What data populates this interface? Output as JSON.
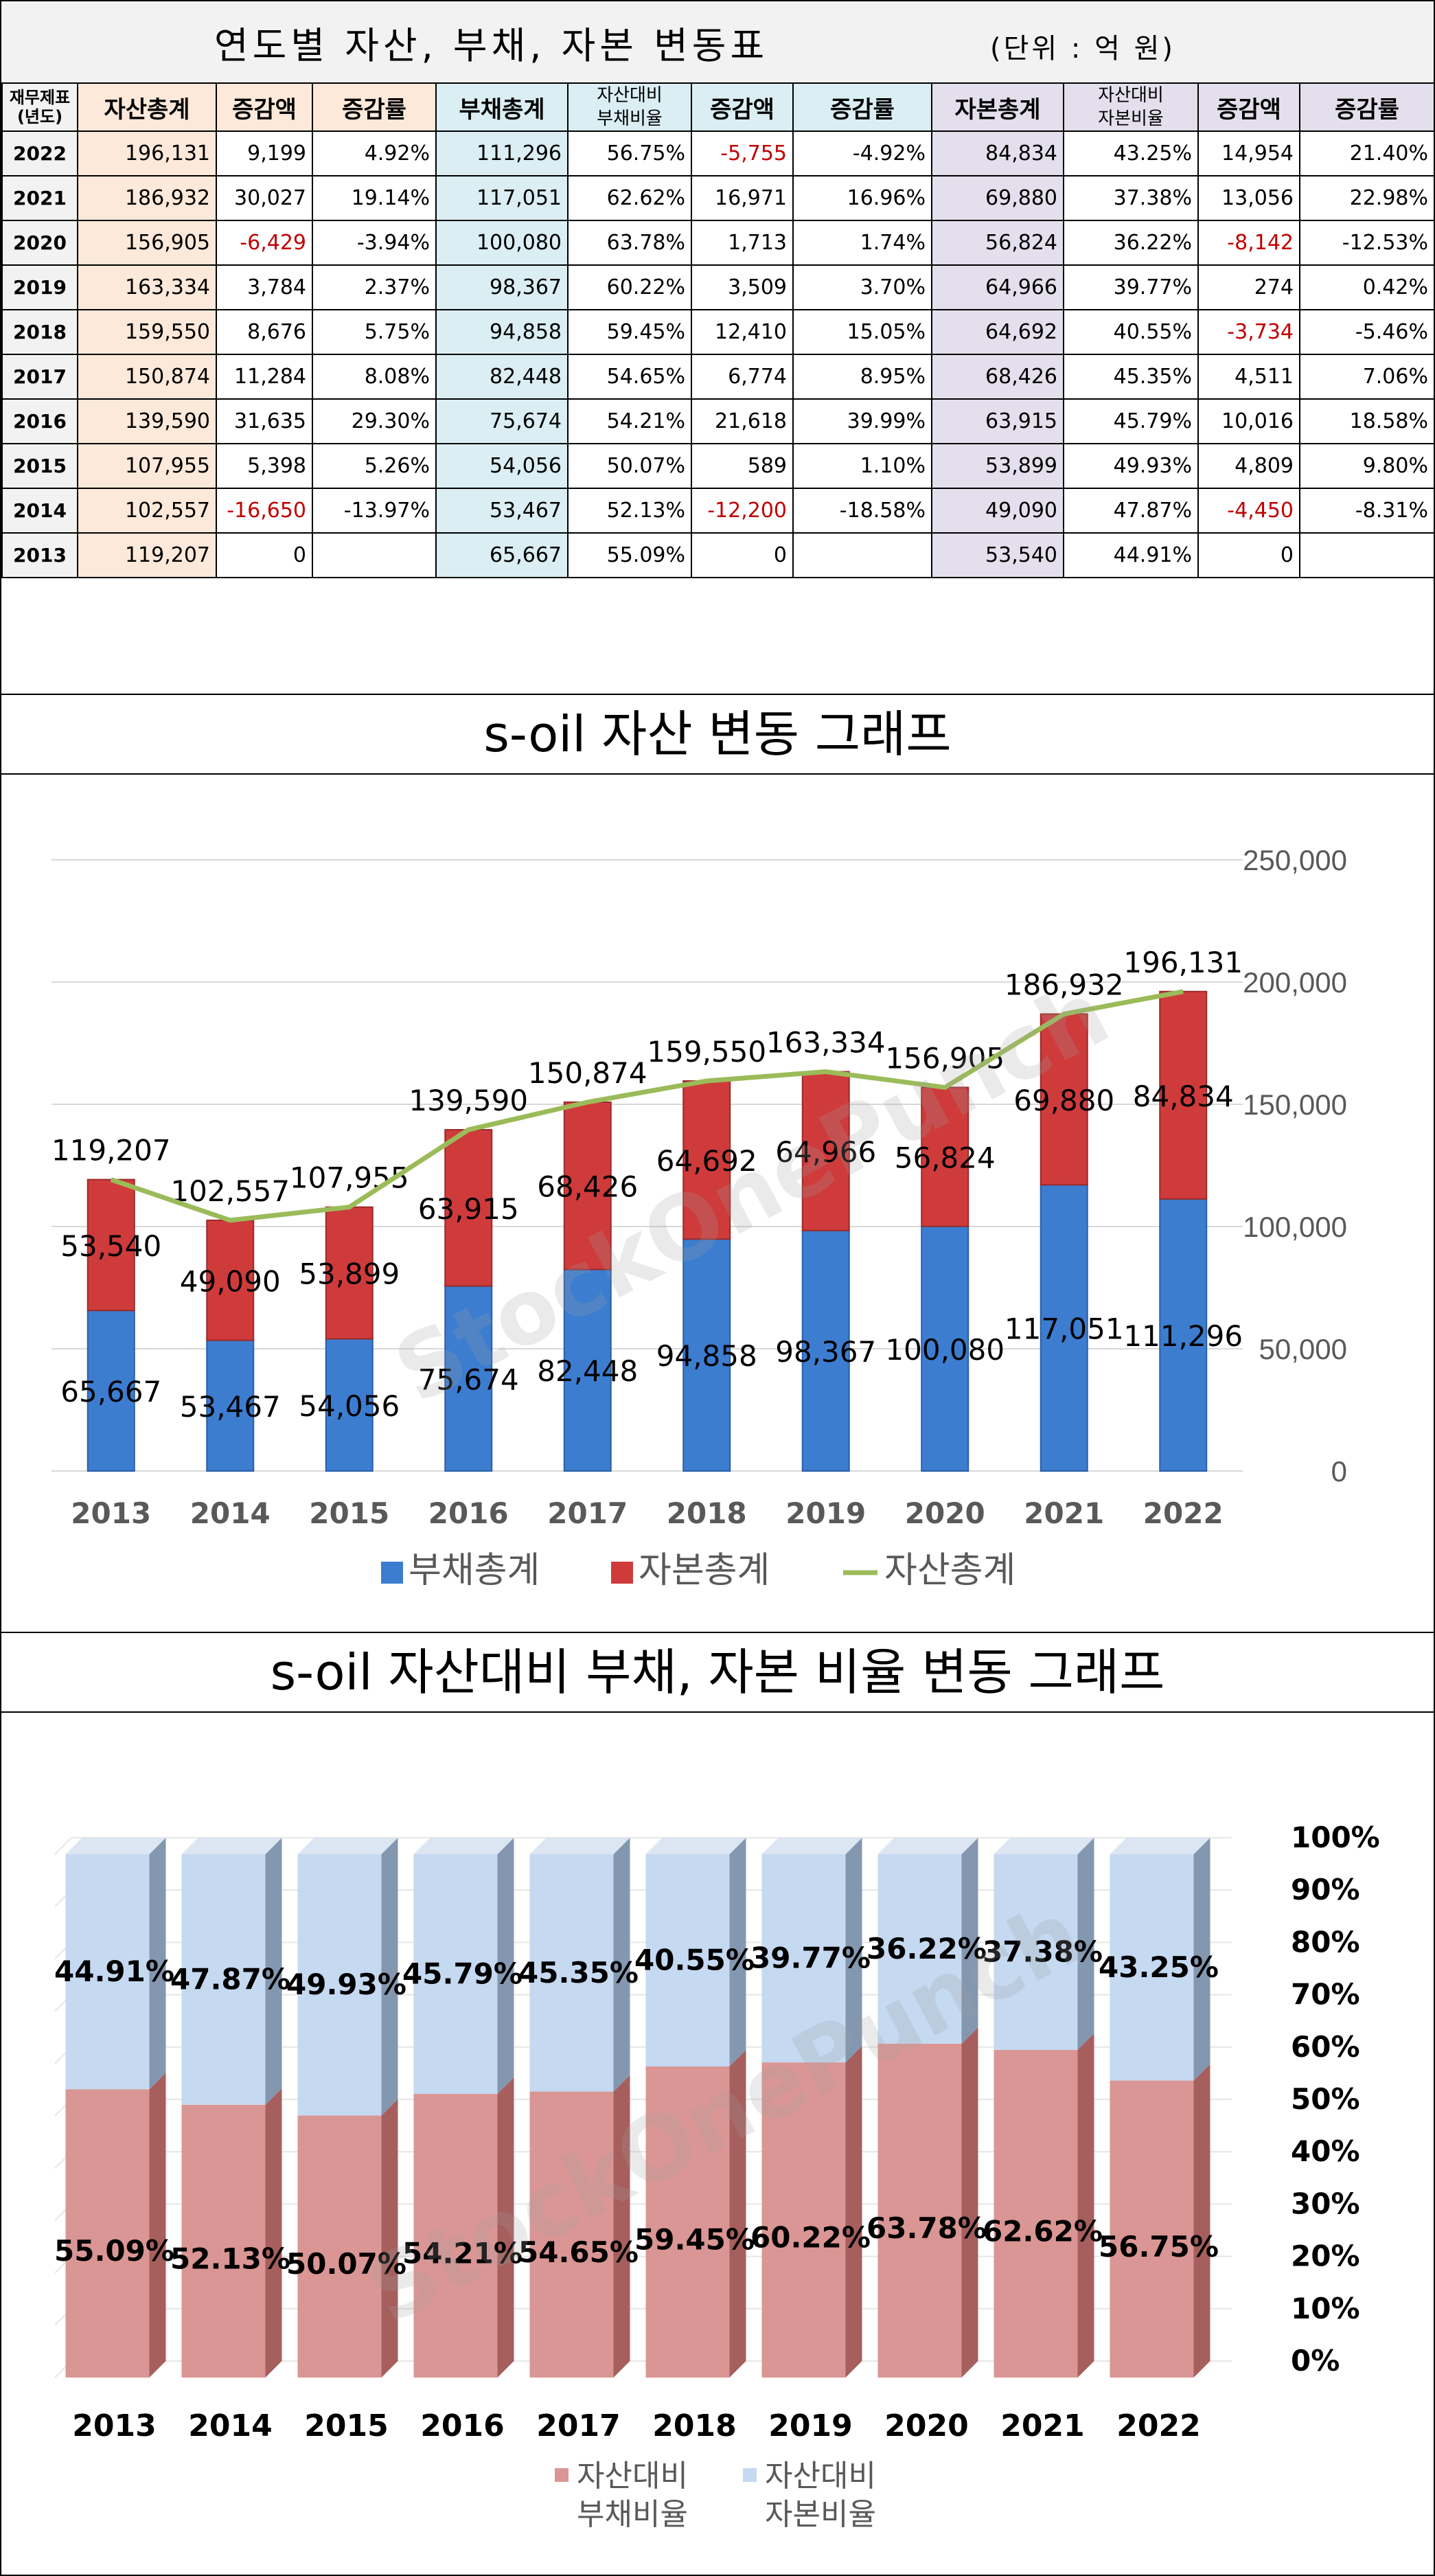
{
  "table": {
    "title": "연도별 자산, 부채, 자본 변동표",
    "unit": "(단위 : 억 원)",
    "headers": [
      "재무제표\n(년도)",
      "자산총계",
      "증감액",
      "증감률",
      "부채총계",
      "자산대비\n부채비율",
      "증감액",
      "증감률",
      "자본총계",
      "자산대비\n자본비율",
      "증감액",
      "증감률"
    ],
    "rows": [
      [
        "2022",
        "196,131",
        "9,199",
        "4.92%",
        "111,296",
        "56.75%",
        "-5,755",
        "-4.92%",
        "84,834",
        "43.25%",
        "14,954",
        "21.40%"
      ],
      [
        "2021",
        "186,932",
        "30,027",
        "19.14%",
        "117,051",
        "62.62%",
        "16,971",
        "16.96%",
        "69,880",
        "37.38%",
        "13,056",
        "22.98%"
      ],
      [
        "2020",
        "156,905",
        "-6,429",
        "-3.94%",
        "100,080",
        "63.78%",
        "1,713",
        "1.74%",
        "56,824",
        "36.22%",
        "-8,142",
        "-12.53%"
      ],
      [
        "2019",
        "163,334",
        "3,784",
        "2.37%",
        "98,367",
        "60.22%",
        "3,509",
        "3.70%",
        "64,966",
        "39.77%",
        "274",
        "0.42%"
      ],
      [
        "2018",
        "159,550",
        "8,676",
        "5.75%",
        "94,858",
        "59.45%",
        "12,410",
        "15.05%",
        "64,692",
        "40.55%",
        "-3,734",
        "-5.46%"
      ],
      [
        "2017",
        "150,874",
        "11,284",
        "8.08%",
        "82,448",
        "54.65%",
        "6,774",
        "8.95%",
        "68,426",
        "45.35%",
        "4,511",
        "7.06%"
      ],
      [
        "2016",
        "139,590",
        "31,635",
        "29.30%",
        "75,674",
        "54.21%",
        "21,618",
        "39.99%",
        "63,915",
        "45.79%",
        "10,016",
        "18.58%"
      ],
      [
        "2015",
        "107,955",
        "5,398",
        "5.26%",
        "54,056",
        "50.07%",
        "589",
        "1.10%",
        "53,899",
        "49.93%",
        "4,809",
        "9.80%"
      ],
      [
        "2014",
        "102,557",
        "-16,650",
        "-13.97%",
        "53,467",
        "52.13%",
        "-12,200",
        "-18.58%",
        "49,090",
        "47.87%",
        "-4,450",
        "-8.31%"
      ],
      [
        "2013",
        "119,207",
        "0",
        "",
        "65,667",
        "55.09%",
        "0",
        "",
        "53,540",
        "44.91%",
        "0",
        ""
      ]
    ],
    "negative_color": "#c00000"
  },
  "watermark": "StockOnePunch",
  "chart_data": [
    {
      "type": "bar",
      "stacked": true,
      "title": "s-oil 자산 변동 그래프",
      "categories": [
        "2013",
        "2014",
        "2015",
        "2016",
        "2017",
        "2018",
        "2019",
        "2020",
        "2021",
        "2022"
      ],
      "series": [
        {
          "name": "부채총계",
          "values": [
            65667,
            53467,
            54056,
            75674,
            82448,
            94858,
            98367,
            100080,
            117051,
            111296
          ],
          "color": "#3c7dd0"
        },
        {
          "name": "자본총계",
          "values": [
            53540,
            49090,
            53899,
            63915,
            68426,
            64692,
            64966,
            56824,
            69880,
            84834
          ],
          "color": "#cf3b3b"
        },
        {
          "name": "자산총계",
          "type": "line",
          "values": [
            119207,
            102557,
            107955,
            139590,
            150874,
            159550,
            163334,
            156905,
            186932,
            196131
          ],
          "color": "#9bbb59"
        }
      ],
      "value_labels": {
        "부채총계": [
          "65,667",
          "53,467",
          "54,056",
          "75,674",
          "82,448",
          "94,858",
          "98,367",
          "100,080",
          "117,051",
          "111,296"
        ],
        "자본총계": [
          "53,540",
          "49,090",
          "53,899",
          "63,915",
          "68,426",
          "64,692",
          "64,966",
          "56,824",
          "69,880",
          "84,834"
        ],
        "자산총계": [
          "119,207",
          "102,557",
          "107,955",
          "139,590",
          "150,874",
          "159,550",
          "163,334",
          "156,905",
          "186,932",
          "196,131"
        ]
      },
      "ylim": [
        0,
        250000
      ],
      "yticks": [
        "0",
        "50,000",
        "100,000",
        "150,000",
        "200,000",
        "250,000"
      ],
      "grid": true,
      "legend": "bottom"
    },
    {
      "type": "bar",
      "stacked": true,
      "percent": true,
      "title": "s-oil 자산대비 부채, 자본 비율 변동 그래프",
      "categories": [
        "2013",
        "2014",
        "2015",
        "2016",
        "2017",
        "2018",
        "2019",
        "2020",
        "2021",
        "2022"
      ],
      "series": [
        {
          "name": "자산대비 부채비율",
          "values": [
            55.09,
            52.13,
            50.07,
            54.21,
            54.65,
            59.45,
            60.22,
            63.78,
            62.62,
            56.75
          ],
          "color": "#da9694"
        },
        {
          "name": "자산대비 자본비율",
          "values": [
            44.91,
            47.87,
            49.93,
            45.79,
            45.35,
            40.55,
            39.77,
            36.22,
            37.38,
            43.25
          ],
          "color": "#c5d9f1"
        }
      ],
      "value_labels": {
        "자산대비 부채비율": [
          "55.09%",
          "52.13%",
          "50.07%",
          "54.21%",
          "54.65%",
          "59.45%",
          "60.22%",
          "63.78%",
          "62.62%",
          "56.75%"
        ],
        "자산대비 자본비율": [
          "44.91%",
          "47.87%",
          "49.93%",
          "45.79%",
          "45.35%",
          "40.55%",
          "39.77%",
          "36.22%",
          "37.38%",
          "43.25%"
        ]
      },
      "ylim": [
        0,
        100
      ],
      "yticks": [
        "0%",
        "10%",
        "20%",
        "30%",
        "40%",
        "50%",
        "60%",
        "70%",
        "80%",
        "90%",
        "100%"
      ],
      "grid": true,
      "legend": "bottom"
    }
  ]
}
